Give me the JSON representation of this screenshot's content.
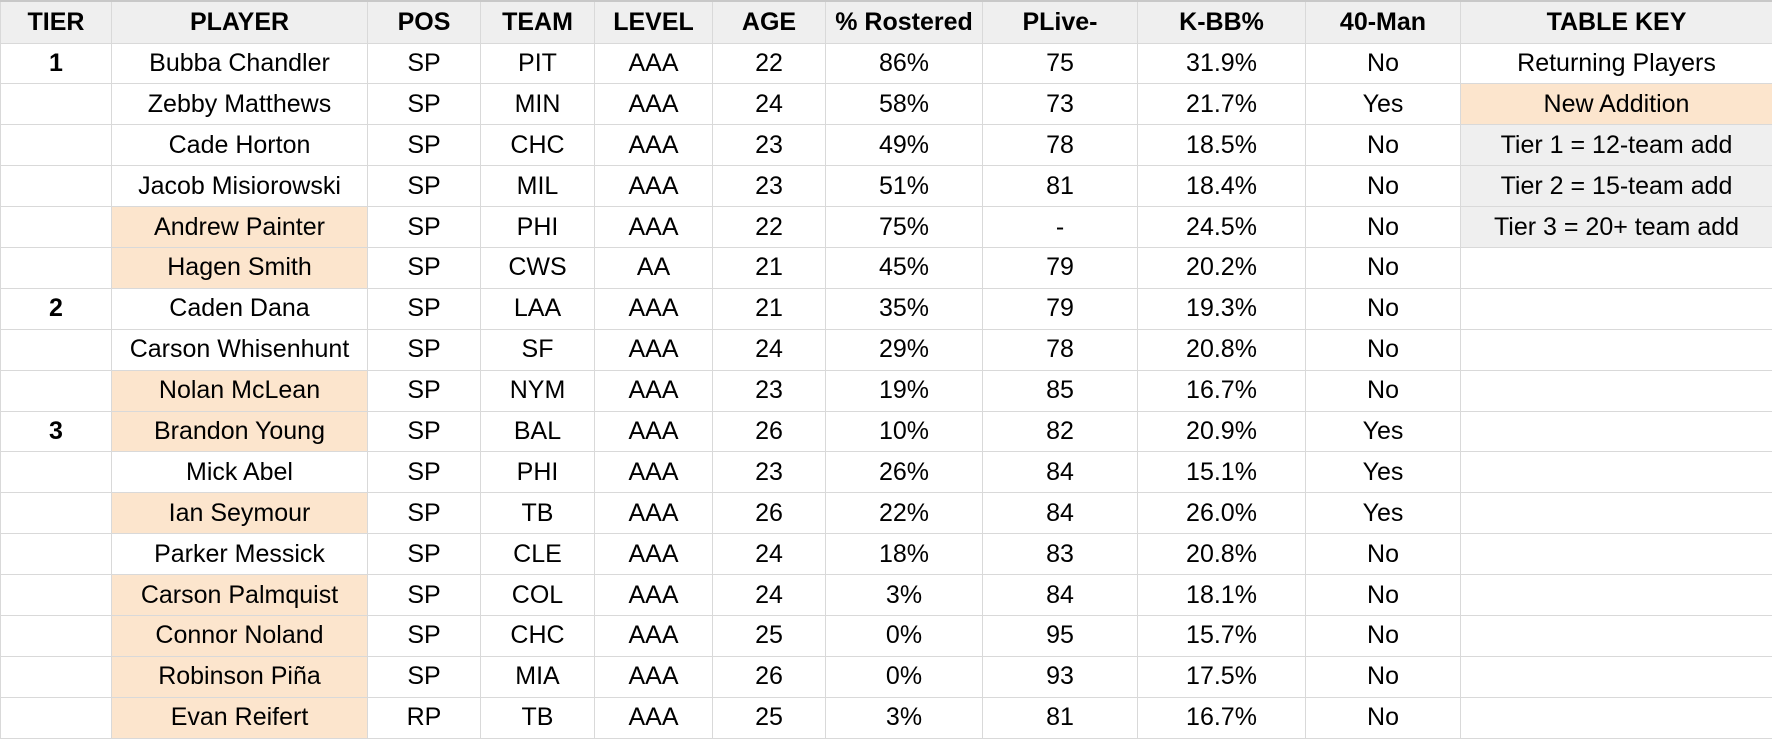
{
  "headers": {
    "tier": "TIER",
    "player": "PLAYER",
    "pos": "POS",
    "team": "TEAM",
    "level": "LEVEL",
    "age": "AGE",
    "rostered": "% Rostered",
    "plive": "PLive-",
    "kbb": "K-BB%",
    "forty_man": "40-Man",
    "key": "TABLE KEY"
  },
  "colors": {
    "new_addition": "#fce5cd",
    "header_bg": "#efefef",
    "key_grey": "#efefef",
    "grid": "#d9d9d9"
  },
  "table_key": [
    "Returning Players",
    "New Addition",
    "Tier 1 = 12-team add",
    "Tier 2 = 15-team add",
    "Tier 3 = 20+ team add"
  ],
  "rows": [
    {
      "tier": "1",
      "player": "Bubba Chandler",
      "new": false,
      "pos": "SP",
      "team": "PIT",
      "level": "AAA",
      "age": "22",
      "rostered": "86%",
      "plive": "75",
      "kbb": "31.9%",
      "forty_man": "No"
    },
    {
      "tier": "",
      "player": "Zebby Matthews",
      "new": false,
      "pos": "SP",
      "team": "MIN",
      "level": "AAA",
      "age": "24",
      "rostered": "58%",
      "plive": "73",
      "kbb": "21.7%",
      "forty_man": "Yes"
    },
    {
      "tier": "",
      "player": "Cade Horton",
      "new": false,
      "pos": "SP",
      "team": "CHC",
      "level": "AAA",
      "age": "23",
      "rostered": "49%",
      "plive": "78",
      "kbb": "18.5%",
      "forty_man": "No"
    },
    {
      "tier": "",
      "player": "Jacob Misiorowski",
      "new": false,
      "pos": "SP",
      "team": "MIL",
      "level": "AAA",
      "age": "23",
      "rostered": "51%",
      "plive": "81",
      "kbb": "18.4%",
      "forty_man": "No"
    },
    {
      "tier": "",
      "player": "Andrew Painter",
      "new": true,
      "pos": "SP",
      "team": "PHI",
      "level": "AAA",
      "age": "22",
      "rostered": "75%",
      "plive": "-",
      "kbb": "24.5%",
      "forty_man": "No"
    },
    {
      "tier": "",
      "player": "Hagen Smith",
      "new": true,
      "pos": "SP",
      "team": "CWS",
      "level": "AA",
      "age": "21",
      "rostered": "45%",
      "plive": "79",
      "kbb": "20.2%",
      "forty_man": "No"
    },
    {
      "tier": "2",
      "player": "Caden Dana",
      "new": false,
      "pos": "SP",
      "team": "LAA",
      "level": "AAA",
      "age": "21",
      "rostered": "35%",
      "plive": "79",
      "kbb": "19.3%",
      "forty_man": "No"
    },
    {
      "tier": "",
      "player": "Carson Whisenhunt",
      "new": false,
      "pos": "SP",
      "team": "SF",
      "level": "AAA",
      "age": "24",
      "rostered": "29%",
      "plive": "78",
      "kbb": "20.8%",
      "forty_man": "No"
    },
    {
      "tier": "",
      "player": "Nolan McLean",
      "new": true,
      "pos": "SP",
      "team": "NYM",
      "level": "AAA",
      "age": "23",
      "rostered": "19%",
      "plive": "85",
      "kbb": "16.7%",
      "forty_man": "No"
    },
    {
      "tier": "3",
      "player": "Brandon Young",
      "new": true,
      "pos": "SP",
      "team": "BAL",
      "level": "AAA",
      "age": "26",
      "rostered": "10%",
      "plive": "82",
      "kbb": "20.9%",
      "forty_man": "Yes"
    },
    {
      "tier": "",
      "player": "Mick Abel",
      "new": false,
      "pos": "SP",
      "team": "PHI",
      "level": "AAA",
      "age": "23",
      "rostered": "26%",
      "plive": "84",
      "kbb": "15.1%",
      "forty_man": "Yes"
    },
    {
      "tier": "",
      "player": "Ian Seymour",
      "new": true,
      "pos": "SP",
      "team": "TB",
      "level": "AAA",
      "age": "26",
      "rostered": "22%",
      "plive": "84",
      "kbb": "26.0%",
      "forty_man": "Yes"
    },
    {
      "tier": "",
      "player": "Parker Messick",
      "new": false,
      "pos": "SP",
      "team": "CLE",
      "level": "AAA",
      "age": "24",
      "rostered": "18%",
      "plive": "83",
      "kbb": "20.8%",
      "forty_man": "No"
    },
    {
      "tier": "",
      "player": "Carson Palmquist",
      "new": true,
      "pos": "SP",
      "team": "COL",
      "level": "AAA",
      "age": "24",
      "rostered": "3%",
      "plive": "84",
      "kbb": "18.1%",
      "forty_man": "No"
    },
    {
      "tier": "",
      "player": "Connor Noland",
      "new": true,
      "pos": "SP",
      "team": "CHC",
      "level": "AAA",
      "age": "25",
      "rostered": "0%",
      "plive": "95",
      "kbb": "15.7%",
      "forty_man": "No"
    },
    {
      "tier": "",
      "player": "Robinson Piña",
      "new": true,
      "pos": "SP",
      "team": "MIA",
      "level": "AAA",
      "age": "26",
      "rostered": "0%",
      "plive": "93",
      "kbb": "17.5%",
      "forty_man": "No"
    },
    {
      "tier": "",
      "player": "Evan Reifert",
      "new": true,
      "pos": "RP",
      "team": "TB",
      "level": "AAA",
      "age": "25",
      "rostered": "3%",
      "plive": "81",
      "kbb": "16.7%",
      "forty_man": "No"
    }
  ]
}
